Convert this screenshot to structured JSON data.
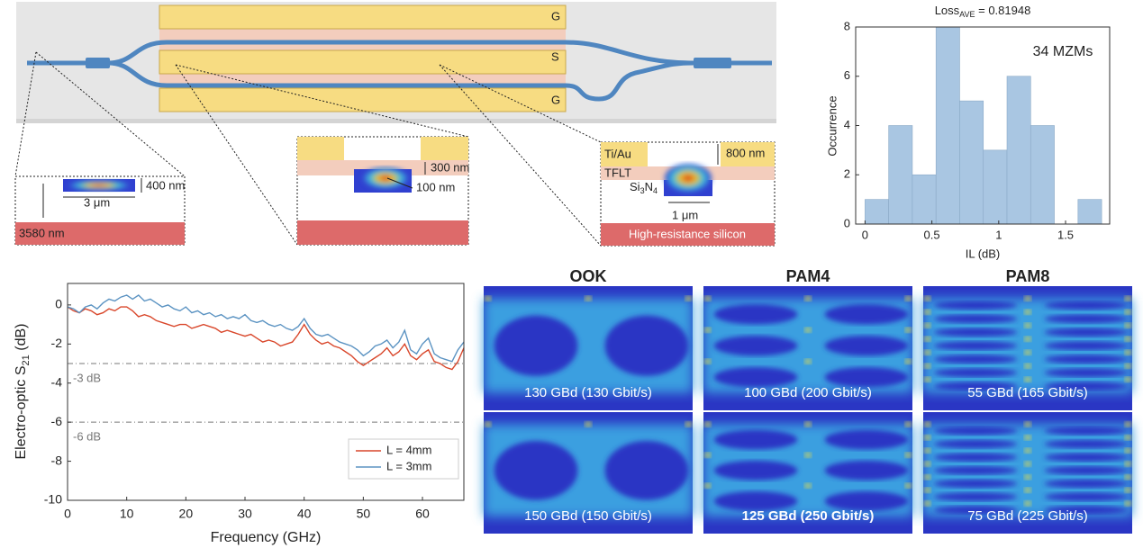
{
  "diagram": {
    "electrodes": [
      "G",
      "S",
      "G"
    ],
    "insets": [
      {
        "labels": [
          "400 nm",
          "3 μm",
          "3580 nm"
        ]
      },
      {
        "labels": [
          "300 nm",
          "100 nm"
        ]
      },
      {
        "labels": [
          "Ti/Au",
          "TFLT",
          "800 nm",
          "1 μm",
          "High-resistance silicon"
        ],
        "material": [
          "Si",
          "3",
          "N",
          "4"
        ]
      }
    ]
  },
  "chart_data": [
    {
      "type": "histogram",
      "title": {
        "text": "Loss",
        "subscript": "AVE",
        "suffix": " = 0.81948"
      },
      "annotation": "34 MZMs",
      "xlabel": "IL (dB)",
      "ylabel": "Occurrence",
      "bins": [
        0,
        0.177,
        0.354,
        0.531,
        0.708,
        0.885,
        1.062,
        1.239,
        1.416,
        1.593,
        1.77
      ],
      "counts": [
        1,
        4,
        2,
        8,
        5,
        3,
        6,
        4,
        0,
        1
      ],
      "color": "#a9c6e2",
      "xlim": [
        -0.07,
        1.83
      ],
      "ylim": [
        0,
        8
      ],
      "xticks": [
        0,
        0.5,
        1,
        1.5
      ],
      "yticks": [
        0,
        2,
        4,
        6,
        8
      ]
    },
    {
      "type": "line",
      "xlabel": "Frequency (GHz)",
      "ylabel": {
        "text": "Electro-optic S",
        "subscript": "21",
        "suffix": " (dB)"
      },
      "x": [
        0,
        1,
        2,
        3,
        4,
        5,
        6,
        7,
        8,
        9,
        10,
        11,
        12,
        13,
        14,
        15,
        16,
        17,
        18,
        19,
        20,
        21,
        22,
        23,
        24,
        25,
        26,
        27,
        28,
        29,
        30,
        31,
        32,
        33,
        34,
        35,
        36,
        37,
        38,
        39,
        40,
        41,
        42,
        43,
        44,
        45,
        46,
        47,
        48,
        49,
        50,
        51,
        52,
        53,
        54,
        55,
        56,
        57,
        58,
        59,
        60,
        61,
        62,
        63,
        64,
        65,
        66,
        67
      ],
      "series": [
        {
          "name": "L = 4mm",
          "color": "#d9472b",
          "values": [
            -0.1,
            -0.3,
            -0.4,
            -0.2,
            -0.3,
            -0.5,
            -0.4,
            -0.2,
            -0.3,
            -0.1,
            -0.1,
            -0.3,
            -0.6,
            -0.5,
            -0.6,
            -0.8,
            -0.9,
            -1.0,
            -1.1,
            -1.0,
            -1.0,
            -1.2,
            -1.1,
            -1.0,
            -1.1,
            -1.2,
            -1.4,
            -1.3,
            -1.4,
            -1.5,
            -1.6,
            -1.5,
            -1.7,
            -1.9,
            -1.8,
            -1.9,
            -2.1,
            -2.0,
            -1.9,
            -1.5,
            -1.0,
            -1.5,
            -1.8,
            -2.0,
            -1.9,
            -2.1,
            -2.2,
            -2.4,
            -2.6,
            -2.9,
            -3.1,
            -2.9,
            -2.7,
            -2.5,
            -2.2,
            -2.6,
            -2.4,
            -2.0,
            -2.6,
            -2.8,
            -2.5,
            -2.3,
            -2.9,
            -3.0,
            -3.2,
            -3.3,
            -2.9,
            -2.2
          ]
        },
        {
          "name": "L = 3mm",
          "color": "#5b93c2",
          "values": [
            -0.1,
            -0.2,
            -0.4,
            -0.1,
            0.0,
            -0.2,
            0.1,
            0.3,
            0.2,
            0.4,
            0.5,
            0.3,
            0.5,
            0.2,
            0.3,
            0.1,
            -0.1,
            0.0,
            -0.2,
            -0.3,
            -0.1,
            -0.4,
            -0.3,
            -0.5,
            -0.4,
            -0.6,
            -0.5,
            -0.7,
            -0.6,
            -0.7,
            -0.5,
            -0.8,
            -0.9,
            -0.8,
            -1.0,
            -1.1,
            -1.0,
            -1.2,
            -1.3,
            -1.1,
            -0.7,
            -1.2,
            -1.5,
            -1.6,
            -1.5,
            -1.7,
            -1.9,
            -2.0,
            -2.1,
            -2.3,
            -2.6,
            -2.4,
            -2.1,
            -2.0,
            -1.8,
            -2.2,
            -1.9,
            -1.3,
            -2.3,
            -2.5,
            -2.0,
            -1.7,
            -2.5,
            -2.7,
            -2.8,
            -2.9,
            -2.3,
            -1.9
          ]
        }
      ],
      "hlines": [
        {
          "y": -3,
          "label": "-3 dB",
          "color": "#777777"
        },
        {
          "y": -6,
          "label": "-6 dB",
          "color": "#777777"
        }
      ],
      "xlim": [
        0,
        67
      ],
      "ylim": [
        -10,
        1.1
      ],
      "xticks": [
        0,
        10,
        20,
        30,
        40,
        50,
        60
      ],
      "yticks": [
        0,
        -2,
        -4,
        -6,
        -8,
        -10
      ],
      "legend": "lower right"
    }
  ],
  "eye_diagrams": {
    "columns": [
      {
        "title": "OOK",
        "panels": [
          "130 GBd (130 Gbit/s)",
          "150 GBd (150 Gbit/s)"
        ]
      },
      {
        "title": "PAM4",
        "panels": [
          "100 GBd (200 Gbit/s)",
          "125 GBd (250 Gbit/s)"
        ]
      },
      {
        "title": "PAM8",
        "panels": [
          "55 GBd (165 Gbit/s)",
          "75 GBd (225 Gbit/s)"
        ]
      }
    ]
  }
}
